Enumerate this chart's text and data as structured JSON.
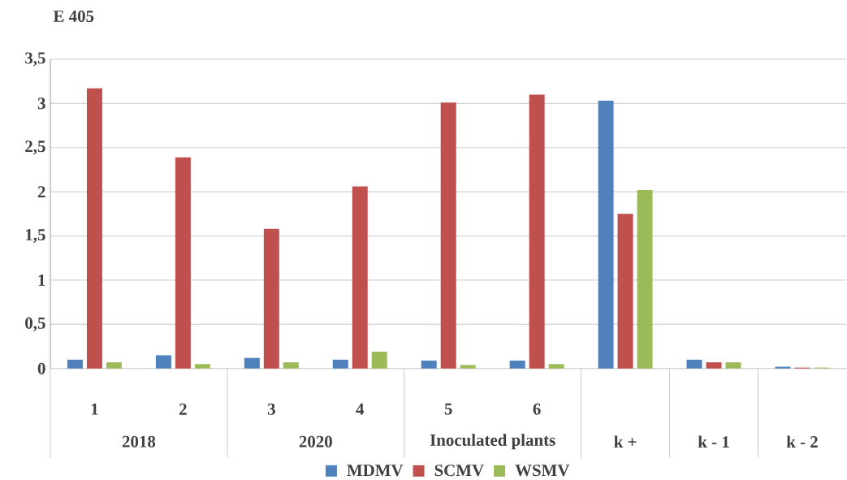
{
  "chart_data": {
    "type": "bar",
    "ylabel": "E 405",
    "categories": [
      "1",
      "2",
      "3",
      "4",
      "5",
      "6",
      null,
      null,
      null
    ],
    "annotations": [
      "2018",
      "2020",
      "Inoculated plants",
      "k +",
      "k - 1",
      "k - 2"
    ],
    "series": [
      {
        "name": "MDMV",
        "color": "#4f81bd",
        "values": [
          0.1,
          0.15,
          0.12,
          0.1,
          0.09,
          0.09,
          3.03,
          0.1,
          0.02
        ]
      },
      {
        "name": "SCMV",
        "color": "#c0504d",
        "values": [
          3.17,
          2.39,
          1.58,
          2.06,
          3.01,
          3.1,
          1.75,
          0.07,
          0.01
        ]
      },
      {
        "name": "WSMV",
        "color": "#9bbb59",
        "values": [
          0.07,
          0.05,
          0.07,
          0.19,
          0.04,
          0.05,
          2.02,
          0.07,
          0.01
        ]
      }
    ],
    "ylim": [
      0,
      3.5
    ],
    "yticks": [
      0,
      {
        "value": 0.5,
        "label": "0,5"
      },
      1,
      {
        "value": 1.5,
        "label": "1,5"
      },
      2,
      {
        "value": 2.5,
        "label": "2,5"
      },
      3,
      {
        "value": 3.5,
        "label": "3,5"
      }
    ],
    "grid": "y",
    "legend": "bottom"
  }
}
